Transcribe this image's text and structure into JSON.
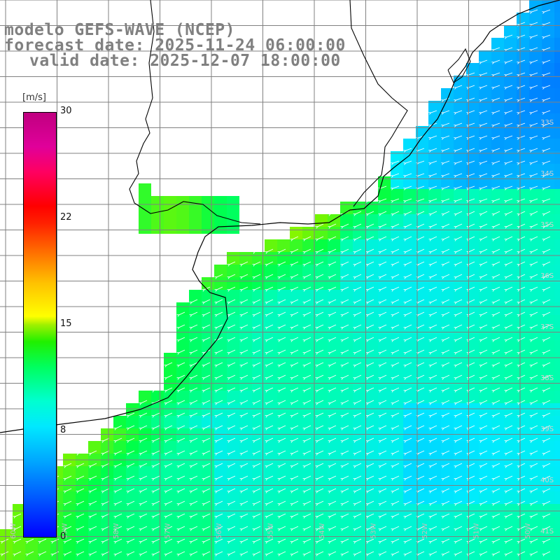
{
  "header": {
    "line1": "modelo GEFS-WAVE (NCEP)",
    "line2": "forecast date: 2025-11-24 06:00:00",
    "line3": "valid date: 2025-12-07 18:00:00"
  },
  "colorbar": {
    "unit": "[m/s]",
    "ticks": [
      "30",
      "22",
      "15",
      "8",
      "0"
    ]
  },
  "map": {
    "variable": "wind speed and direction",
    "lat_labels": [
      "33S",
      "34S",
      "35S",
      "36S",
      "37S",
      "38S",
      "39S",
      "40S",
      "41S"
    ],
    "lon_labels": [
      "60W",
      "59W",
      "58W",
      "57W",
      "56W",
      "55W",
      "54W",
      "53W",
      "52W",
      "51W",
      "50W"
    ],
    "colors": {
      "land": "#ffffff",
      "grid": "#808080",
      "coast": "#000000",
      "arrow": "#ffffff"
    }
  }
}
